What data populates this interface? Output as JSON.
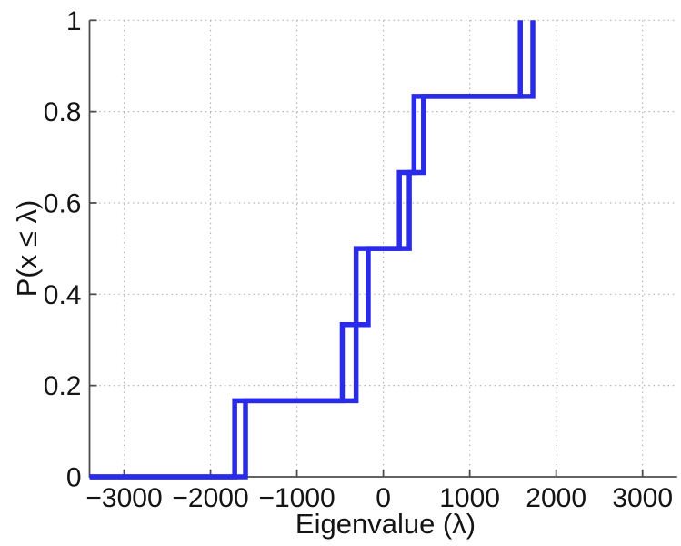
{
  "figure": {
    "background": "#ffffff",
    "title": ""
  },
  "chart_data": {
    "type": "line",
    "subtype": "empirical-cdf-step",
    "title": "",
    "xlabel": "Eigenvalue (λ)",
    "ylabel": "P(x ≤ λ)",
    "xlim": [
      -3400,
      3400
    ],
    "ylim": [
      0,
      1
    ],
    "x_ticks": [
      -3000,
      -2000,
      -1000,
      0,
      1000,
      2000,
      3000
    ],
    "x_tick_labels": [
      "−3000",
      "−2000",
      "−1000",
      "0",
      "1000",
      "2000",
      "3000"
    ],
    "y_ticks": [
      0,
      0.2,
      0.4,
      0.6,
      0.8,
      1
    ],
    "y_tick_labels": [
      "0",
      "0.2",
      "0.4",
      "0.6",
      "0.8",
      "1"
    ],
    "grid": true,
    "grid_style": "dotted",
    "legend": null,
    "step_levels": [
      0,
      0.1667,
      0.3333,
      0.5,
      0.6667,
      0.8333,
      1
    ],
    "series": [
      {
        "name": "cdf-step-line-1",
        "eigenvalues": [
          -1720,
          -475,
          -175,
          185,
          355,
          1585
        ],
        "color": "#2A2AEA"
      },
      {
        "name": "cdf-step-line-2",
        "eigenvalues": [
          -1595,
          -315,
          -315,
          300,
          465,
          1730
        ],
        "color": "#2A2AEA"
      }
    ],
    "colors": {
      "line": "#2A2AEA",
      "axis": "#4d4d4d",
      "grid": "#b3b3b3",
      "text": "#141414"
    }
  }
}
